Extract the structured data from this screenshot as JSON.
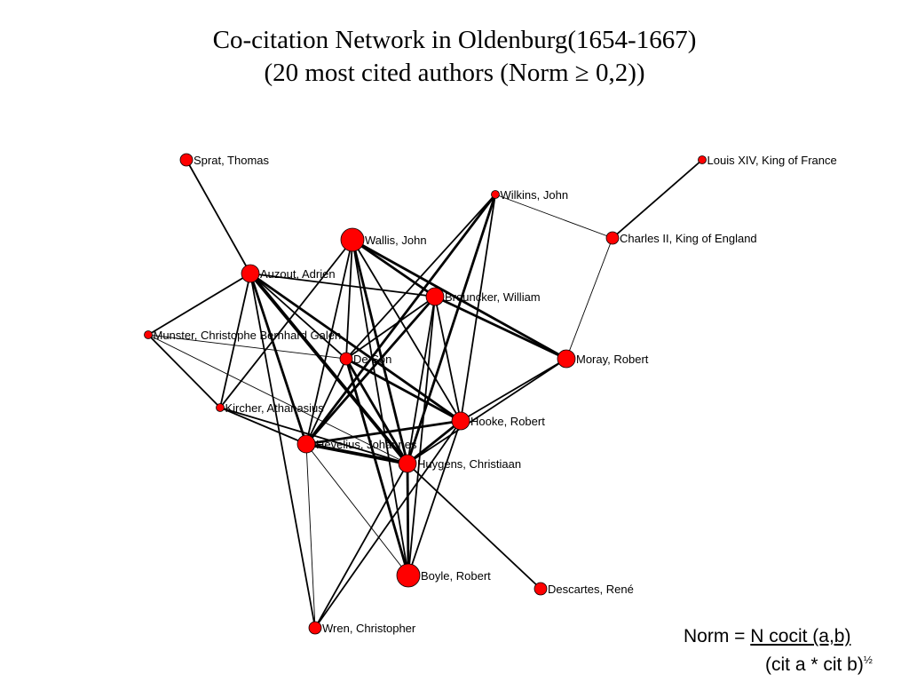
{
  "title": {
    "line1": "Co-citation Network in Oldenburg(1654-1667)",
    "line2": "(20 most cited authors (Norm ≥ 0,2))"
  },
  "nodes": [
    {
      "id": "sprat",
      "label": "Sprat, Thomas",
      "size": "small"
    },
    {
      "id": "louis",
      "label": "Louis XIV, King of France",
      "size": "tiny"
    },
    {
      "id": "wilkins",
      "label": "Wilkins, John",
      "size": "tiny"
    },
    {
      "id": "wallis",
      "label": "Wallis, John",
      "size": "large"
    },
    {
      "id": "charles",
      "label": "Charles II, King of England",
      "size": "small"
    },
    {
      "id": "auzout",
      "label": "Auzout, Adrien",
      "size": "medium"
    },
    {
      "id": "brouncker",
      "label": "Brouncker, William",
      "size": "medium"
    },
    {
      "id": "munster",
      "label": "Munster, Christophe Bernhard Galen",
      "size": "tiny"
    },
    {
      "id": "deson",
      "label": "De Son",
      "size": "small"
    },
    {
      "id": "moray",
      "label": "Moray, Robert",
      "size": "medium"
    },
    {
      "id": "kircher",
      "label": "Kircher, Athanasius",
      "size": "tiny"
    },
    {
      "id": "hooke",
      "label": "Hooke, Robert",
      "size": "medium"
    },
    {
      "id": "hevelius",
      "label": "Hevelius, Johannes",
      "size": "medium"
    },
    {
      "id": "huygens",
      "label": "Huygens, Christiaan",
      "size": "medium"
    },
    {
      "id": "boyle",
      "label": "Boyle, Robert",
      "size": "large"
    },
    {
      "id": "descartes",
      "label": "Descartes, René",
      "size": "small"
    },
    {
      "id": "wren",
      "label": "Wren, Christopher",
      "size": "small"
    }
  ],
  "edges": [
    {
      "source": "sprat",
      "target": "auzout",
      "weight": 2
    },
    {
      "source": "louis",
      "target": "charles",
      "weight": 2
    },
    {
      "source": "wilkins",
      "target": "charles",
      "weight": 1
    },
    {
      "source": "charles",
      "target": "moray",
      "weight": 1
    },
    {
      "source": "wilkins",
      "target": "deson",
      "weight": 2
    },
    {
      "source": "wilkins",
      "target": "hevelius",
      "weight": 3
    },
    {
      "source": "wilkins",
      "target": "huygens",
      "weight": 3
    },
    {
      "source": "wilkins",
      "target": "hooke",
      "weight": 2
    },
    {
      "source": "wallis",
      "target": "brouncker",
      "weight": 3
    },
    {
      "source": "wallis",
      "target": "moray",
      "weight": 3
    },
    {
      "source": "wallis",
      "target": "deson",
      "weight": 2
    },
    {
      "source": "wallis",
      "target": "hevelius",
      "weight": 2
    },
    {
      "source": "wallis",
      "target": "huygens",
      "weight": 3
    },
    {
      "source": "wallis",
      "target": "hooke",
      "weight": 2
    },
    {
      "source": "wallis",
      "target": "kircher",
      "weight": 2
    },
    {
      "source": "wallis",
      "target": "boyle",
      "weight": 2
    },
    {
      "source": "auzout",
      "target": "brouncker",
      "weight": 2
    },
    {
      "source": "auzout",
      "target": "munster",
      "weight": 2
    },
    {
      "source": "auzout",
      "target": "deson",
      "weight": 2
    },
    {
      "source": "auzout",
      "target": "kircher",
      "weight": 2
    },
    {
      "source": "auzout",
      "target": "hevelius",
      "weight": 3
    },
    {
      "source": "auzout",
      "target": "huygens",
      "weight": 4
    },
    {
      "source": "auzout",
      "target": "hooke",
      "weight": 3
    },
    {
      "source": "auzout",
      "target": "wren",
      "weight": 2
    },
    {
      "source": "brouncker",
      "target": "moray",
      "weight": 3
    },
    {
      "source": "brouncker",
      "target": "deson",
      "weight": 2
    },
    {
      "source": "brouncker",
      "target": "hevelius",
      "weight": 3
    },
    {
      "source": "brouncker",
      "target": "huygens",
      "weight": 2
    },
    {
      "source": "brouncker",
      "target": "hooke",
      "weight": 2
    },
    {
      "source": "brouncker",
      "target": "boyle",
      "weight": 2
    },
    {
      "source": "munster",
      "target": "deson",
      "weight": 1
    },
    {
      "source": "munster",
      "target": "kircher",
      "weight": 2
    },
    {
      "source": "munster",
      "target": "huygens",
      "weight": 1
    },
    {
      "source": "deson",
      "target": "hevelius",
      "weight": 2
    },
    {
      "source": "deson",
      "target": "huygens",
      "weight": 3
    },
    {
      "source": "deson",
      "target": "hooke",
      "weight": 3
    },
    {
      "source": "deson",
      "target": "boyle",
      "weight": 3
    },
    {
      "source": "moray",
      "target": "hooke",
      "weight": 2
    },
    {
      "source": "moray",
      "target": "huygens",
      "weight": 2
    },
    {
      "source": "kircher",
      "target": "hevelius",
      "weight": 2
    },
    {
      "source": "kircher",
      "target": "huygens",
      "weight": 2
    },
    {
      "source": "hooke",
      "target": "hevelius",
      "weight": 3
    },
    {
      "source": "hooke",
      "target": "huygens",
      "weight": 3
    },
    {
      "source": "hooke",
      "target": "boyle",
      "weight": 2
    },
    {
      "source": "hooke",
      "target": "wren",
      "weight": 2
    },
    {
      "source": "hevelius",
      "target": "huygens",
      "weight": 4
    },
    {
      "source": "hevelius",
      "target": "boyle",
      "weight": 1
    },
    {
      "source": "hevelius",
      "target": "wren",
      "weight": 1
    },
    {
      "source": "huygens",
      "target": "boyle",
      "weight": 3
    },
    {
      "source": "huygens",
      "target": "descartes",
      "weight": 2
    },
    {
      "source": "huygens",
      "target": "wren",
      "weight": 2
    }
  ],
  "colors": {
    "node_fill": "#ff0000",
    "node_stroke": "#000000",
    "edge": "#000000"
  },
  "formula": {
    "prefix": "Norm = ",
    "numerator": "N cocit (a,b)",
    "denominator": "(cit a * cit b)",
    "exponent": "½"
  }
}
